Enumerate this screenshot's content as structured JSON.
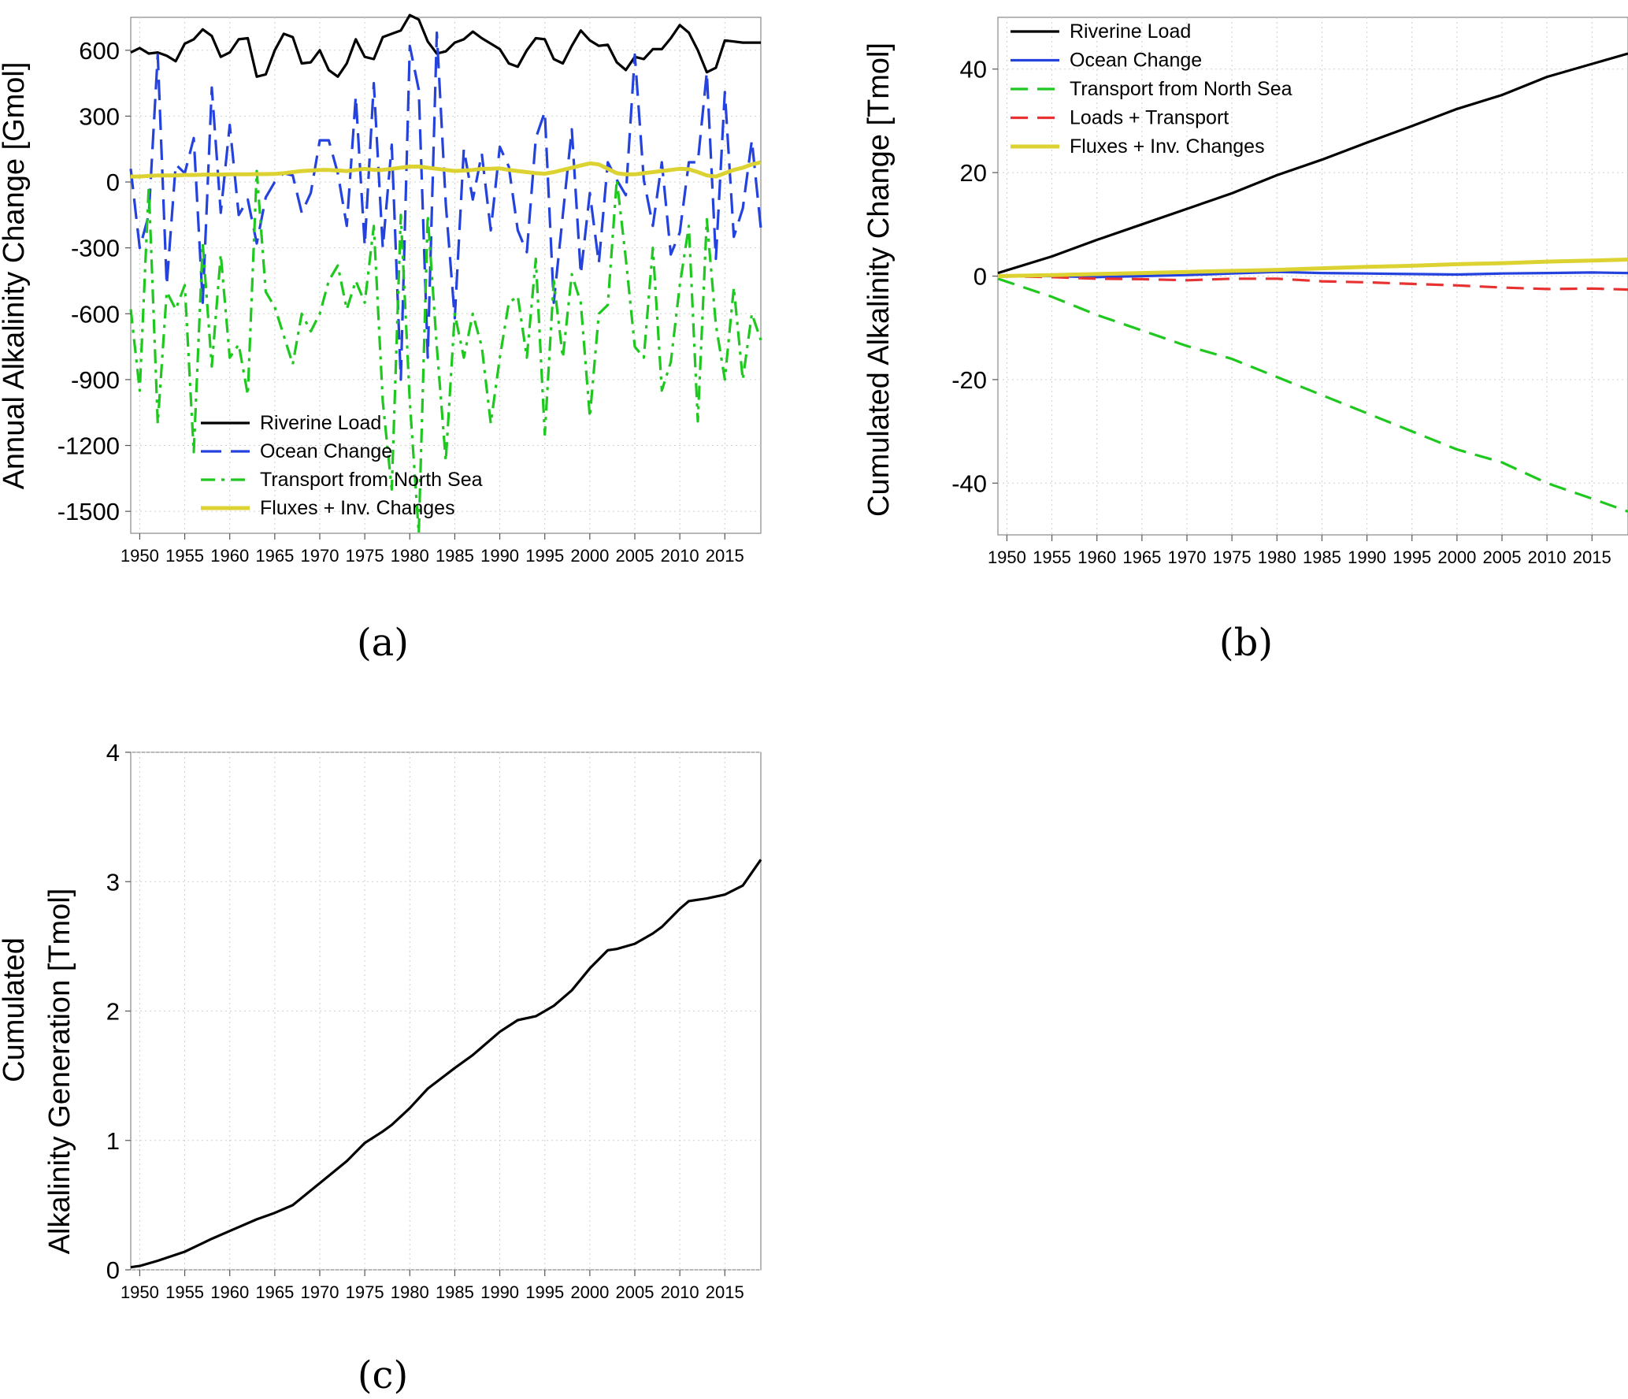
{
  "figure": {
    "captions": [
      "(a)",
      "(b)",
      "(c)"
    ]
  },
  "chart_data": [
    {
      "panel": "a",
      "type": "line",
      "ylabel": "Annual Alkalinity Change [Gmol]",
      "xlim": [
        1949,
        2019
      ],
      "ylim": [
        -1600,
        750
      ],
      "yticks": [
        600,
        300,
        0,
        -300,
        -600,
        -900,
        -1200,
        -1500
      ],
      "xticks": [
        1950,
        1955,
        1960,
        1965,
        1970,
        1975,
        1980,
        1985,
        1990,
        1995,
        2000,
        2005,
        2010,
        2015
      ],
      "grid": true,
      "legend": "bottom-left",
      "x": [
        1949,
        1950,
        1951,
        1952,
        1953,
        1954,
        1955,
        1956,
        1957,
        1958,
        1959,
        1960,
        1961,
        1962,
        1963,
        1964,
        1965,
        1966,
        1967,
        1968,
        1969,
        1970,
        1971,
        1972,
        1973,
        1974,
        1975,
        1976,
        1977,
        1978,
        1979,
        1980,
        1981,
        1982,
        1983,
        1984,
        1985,
        1986,
        1987,
        1988,
        1989,
        1990,
        1991,
        1992,
        1993,
        1994,
        1995,
        1996,
        1997,
        1998,
        1999,
        2000,
        2001,
        2002,
        2003,
        2004,
        2005,
        2006,
        2007,
        2008,
        2009,
        2010,
        2011,
        2012,
        2013,
        2014,
        2015,
        2016,
        2017,
        2018,
        2019
      ],
      "series": [
        {
          "name": "Riverine Load",
          "color": "#000000",
          "dash": "solid",
          "values": [
            590,
            610,
            585,
            590,
            575,
            550,
            630,
            650,
            695,
            665,
            570,
            590,
            650,
            655,
            480,
            490,
            600,
            675,
            660,
            540,
            545,
            600,
            510,
            480,
            540,
            650,
            570,
            560,
            660,
            675,
            690,
            760,
            740,
            640,
            585,
            595,
            635,
            650,
            685,
            655,
            630,
            605,
            540,
            525,
            600,
            655,
            650,
            560,
            540,
            620,
            690,
            645,
            620,
            625,
            545,
            510,
            570,
            560,
            605,
            605,
            655,
            715,
            680,
            600,
            500,
            520,
            645,
            640,
            635,
            635,
            635
          ]
        },
        {
          "name": "Ocean Change",
          "color": "#2442dd",
          "dash": "longdash",
          "values": [
            60,
            -300,
            -150,
            580,
            -470,
            80,
            40,
            200,
            -550,
            430,
            -140,
            260,
            -150,
            -80,
            -280,
            -70,
            0,
            40,
            30,
            -140,
            -50,
            190,
            190,
            40,
            -200,
            390,
            -290,
            450,
            -300,
            170,
            -900,
            620,
            420,
            -800,
            680,
            -100,
            -620,
            150,
            -80,
            130,
            -220,
            160,
            70,
            -220,
            -320,
            200,
            320,
            -550,
            -150,
            240,
            -420,
            -50,
            -370,
            90,
            10,
            -60,
            580,
            10,
            -200,
            90,
            -330,
            -230,
            90,
            90,
            500,
            -350,
            410,
            -250,
            -120,
            190,
            -210
          ]
        },
        {
          "name": "Transport from North Sea",
          "color": "#1ec81e",
          "dash": "dashdot",
          "values": [
            -580,
            -950,
            -20,
            -1100,
            -500,
            -580,
            -470,
            -1230,
            -280,
            -840,
            -330,
            -800,
            -740,
            -970,
            50,
            -500,
            -570,
            -700,
            -830,
            -600,
            -680,
            -600,
            -450,
            -380,
            -580,
            -450,
            -550,
            -200,
            -1000,
            -1400,
            -150,
            -1000,
            -1600,
            -150,
            -750,
            -1270,
            -600,
            -800,
            -600,
            -750,
            -1100,
            -800,
            -550,
            -520,
            -800,
            -350,
            -1150,
            -450,
            -800,
            -420,
            -550,
            -1070,
            -600,
            -560,
            10,
            -350,
            -750,
            -800,
            -300,
            -950,
            -820,
            -470,
            -200,
            -1090,
            -170,
            -650,
            -900,
            -480,
            -900,
            -600,
            -720
          ]
        },
        {
          "name": "Fluxes + Inv. Changes",
          "color": "#dcd232",
          "dash": "solid",
          "width": "thick",
          "values": [
            25,
            25,
            28,
            30,
            30,
            30,
            32,
            32,
            33,
            34,
            34,
            35,
            35,
            35,
            36,
            36,
            37,
            40,
            45,
            50,
            52,
            55,
            55,
            52,
            50,
            55,
            60,
            55,
            55,
            60,
            65,
            70,
            70,
            65,
            60,
            55,
            50,
            52,
            55,
            60,
            60,
            62,
            55,
            50,
            45,
            40,
            38,
            45,
            55,
            65,
            75,
            85,
            80,
            60,
            40,
            35,
            35,
            40,
            45,
            50,
            55,
            60,
            58,
            45,
            30,
            25,
            40,
            55,
            65,
            80,
            90
          ]
        }
      ]
    },
    {
      "panel": "b",
      "type": "line",
      "ylabel": "Cumulated Alkalinity Change [Tmol]",
      "xlim": [
        1949,
        2019
      ],
      "ylim": [
        -50,
        50
      ],
      "yticks": [
        40,
        20,
        0,
        -20,
        -40
      ],
      "xticks": [
        1950,
        1955,
        1960,
        1965,
        1970,
        1975,
        1980,
        1985,
        1990,
        1995,
        2000,
        2005,
        2010,
        2015
      ],
      "grid": true,
      "legend": "top-left",
      "x": [
        1949,
        1955,
        1960,
        1965,
        1970,
        1975,
        1980,
        1985,
        1990,
        1995,
        2000,
        2005,
        2010,
        2015,
        2019
      ],
      "series": [
        {
          "name": "Riverine Load",
          "color": "#000000",
          "dash": "solid",
          "values": [
            0.6,
            3.8,
            7,
            10,
            13,
            16,
            19.5,
            22.5,
            25.8,
            29,
            32.3,
            35,
            38.5,
            41,
            43
          ]
        },
        {
          "name": "Ocean Change",
          "color": "#2442dd",
          "dash": "solid",
          "values": [
            0,
            0,
            -0.2,
            0,
            0.2,
            0.5,
            0.8,
            0.6,
            0.5,
            0.4,
            0.3,
            0.5,
            0.6,
            0.7,
            0.6
          ]
        },
        {
          "name": "Transport from North Sea",
          "color": "#1ec81e",
          "dash": "dashed",
          "values": [
            -0.5,
            -4,
            -7.5,
            -10.5,
            -13.5,
            -16,
            -19.5,
            -23,
            -26.5,
            -30,
            -33.5,
            -36,
            -40,
            -43,
            -45.5
          ]
        },
        {
          "name": "Loads + Transport",
          "color": "#e83232",
          "dash": "dashed",
          "values": [
            0,
            -0.2,
            -0.5,
            -0.6,
            -0.8,
            -0.5,
            -0.5,
            -1,
            -1.2,
            -1.5,
            -1.8,
            -2.2,
            -2.5,
            -2.4,
            -2.6
          ]
        },
        {
          "name": "Fluxes + Inv. Changes",
          "color": "#dcd232",
          "dash": "solid",
          "width": "thick",
          "values": [
            0,
            0.2,
            0.4,
            0.6,
            0.8,
            1.0,
            1.2,
            1.5,
            1.8,
            2.0,
            2.3,
            2.5,
            2.8,
            3.0,
            3.2
          ]
        }
      ]
    },
    {
      "panel": "c",
      "type": "line",
      "ylabel_lines": [
        "Cumulated",
        "Alkalinity Generation [Tmol]"
      ],
      "xlim": [
        1949,
        2019
      ],
      "ylim": [
        0,
        4
      ],
      "yticks": [
        4,
        3,
        2,
        1,
        0
      ],
      "xticks": [
        1950,
        1955,
        1960,
        1965,
        1970,
        1975,
        1980,
        1985,
        1990,
        1995,
        2000,
        2005,
        2010,
        2015
      ],
      "grid": true,
      "x": [
        1949,
        1950,
        1952,
        1955,
        1958,
        1960,
        1963,
        1965,
        1967,
        1970,
        1973,
        1975,
        1977,
        1978,
        1980,
        1982,
        1985,
        1987,
        1988,
        1990,
        1992,
        1994,
        1996,
        1998,
        2000,
        2002,
        2003,
        2005,
        2007,
        2008,
        2010,
        2011,
        2013,
        2015,
        2017,
        2019
      ],
      "series": [
        {
          "name": "",
          "color": "#000000",
          "dash": "solid",
          "values": [
            0.02,
            0.03,
            0.07,
            0.14,
            0.24,
            0.3,
            0.39,
            0.44,
            0.5,
            0.67,
            0.84,
            0.98,
            1.07,
            1.12,
            1.25,
            1.4,
            1.56,
            1.66,
            1.72,
            1.84,
            1.93,
            1.96,
            2.04,
            2.16,
            2.33,
            2.47,
            2.48,
            2.52,
            2.6,
            2.65,
            2.79,
            2.85,
            2.87,
            2.9,
            2.97,
            3.17
          ]
        }
      ]
    }
  ]
}
